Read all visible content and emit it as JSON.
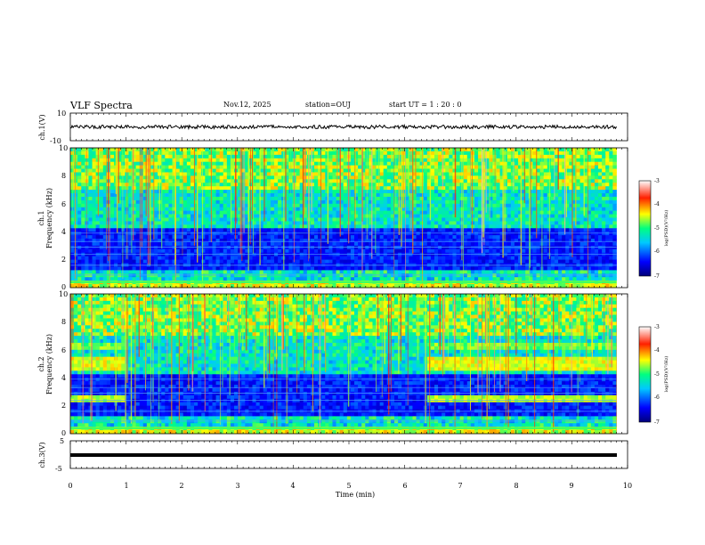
{
  "header": {
    "title": "VLF Spectra",
    "date": "Nov.12, 2025",
    "station": "station=OUJ",
    "start_ut": "start  UT =   1 : 20 : 0"
  },
  "chart_data": [
    {
      "type": "line",
      "panel": "ch1-waveform",
      "ylabel": "ch.1(V)",
      "ylim": [
        -10,
        10
      ],
      "yticks": [
        "10",
        "-10"
      ],
      "xlim": [
        0,
        10
      ],
      "trace_level": 0
    },
    {
      "type": "heatmap",
      "panel": "ch1-spectrogram",
      "ylabel_line1": "ch.1",
      "ylabel_line2": "Frequency (kHz)",
      "ylim": [
        0,
        10
      ],
      "yticks": [
        "0",
        "2",
        "4",
        "6",
        "8",
        "10"
      ],
      "xlim": [
        0,
        9.8
      ],
      "colorbar": {
        "label": "log(PSD)(V²/Hz)",
        "min": -7,
        "max": -3,
        "ticks": [
          "-3",
          "-4",
          "-5",
          "-6",
          "-7"
        ]
      }
    },
    {
      "type": "heatmap",
      "panel": "ch2-spectrogram",
      "ylabel_line1": "ch.2",
      "ylabel_line2": "Frequency (kHz)",
      "ylim": [
        0,
        10
      ],
      "yticks": [
        "0",
        "2",
        "4",
        "6",
        "8",
        "10"
      ],
      "xlim": [
        0,
        9.8
      ],
      "quiet_interval_min": [
        1.0,
        6.4
      ],
      "colorbar": {
        "label": "log(PSD)(V²/Hz)",
        "min": -7,
        "max": -3,
        "ticks": [
          "-3",
          "-4",
          "-5",
          "-6",
          "-7"
        ]
      }
    },
    {
      "type": "line",
      "panel": "ch3-waveform",
      "ylabel": "ch.3(V)",
      "ylim": [
        -5,
        5
      ],
      "yticks": [
        "5",
        "0",
        "-5"
      ],
      "xlim": [
        0,
        10
      ],
      "trace_level": -0.9
    }
  ],
  "xaxis": {
    "xlabel": "Time (min)",
    "xlim": [
      0,
      10
    ],
    "ticks": [
      "0",
      "1",
      "2",
      "3",
      "4",
      "5",
      "6",
      "7",
      "8",
      "9",
      "10"
    ]
  }
}
